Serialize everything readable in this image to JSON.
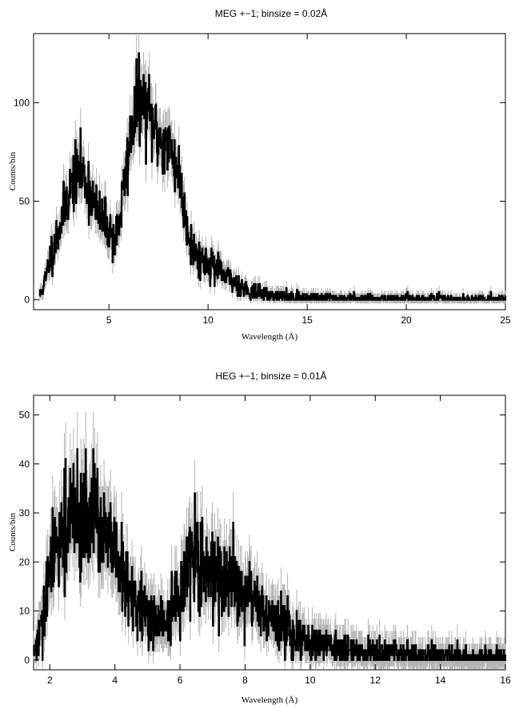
{
  "chart_data": [
    {
      "type": "line",
      "title": "MEG +−1; binsize = 0.02Å",
      "xlabel": "Wavelength (Å)",
      "ylabel": "Counts/bin",
      "xlim": [
        1.2,
        25
      ],
      "ylim": [
        -5,
        135
      ],
      "xticks": [
        5,
        10,
        15,
        20,
        25
      ],
      "yticks": [
        0,
        50,
        100
      ],
      "grid": false,
      "series": [
        {
          "x": [
            1.5,
            1.8,
            2.0,
            2.3,
            2.6,
            2.9,
            3.2,
            3.5,
            3.8,
            4.1,
            4.4,
            4.7,
            5.0,
            5.3,
            5.6,
            5.9,
            6.2,
            6.5,
            6.8,
            7.1,
            7.4,
            7.7,
            8.0,
            8.3,
            8.6,
            8.9,
            9.2,
            9.5,
            9.8,
            10.2,
            10.6,
            11.0,
            11.5,
            12.0,
            12.5,
            13.0,
            13.5,
            14.0,
            15.0,
            16.0,
            18.0,
            20.0,
            22.0,
            25.0
          ],
          "y": [
            2,
            10,
            20,
            30,
            40,
            52,
            60,
            66,
            62,
            54,
            44,
            40,
            36,
            30,
            44,
            68,
            90,
            102,
            98,
            92,
            84,
            80,
            78,
            72,
            60,
            40,
            26,
            22,
            20,
            18,
            14,
            11,
            8,
            5,
            3.5,
            2.5,
            2,
            1.5,
            1.2,
            1,
            0.8,
            0.6,
            0.5,
            0.4
          ]
        }
      ]
    },
    {
      "type": "line",
      "title": "HEG +−1; binsize = 0.01Å",
      "xlabel": "Wavelength (Å)",
      "ylabel": "Counts/bin",
      "xlim": [
        1.5,
        16
      ],
      "ylim": [
        -2,
        54
      ],
      "xticks": [
        2,
        4,
        6,
        8,
        10,
        12,
        14,
        16
      ],
      "yticks": [
        0,
        10,
        20,
        30,
        40,
        50
      ],
      "grid": false,
      "series": [
        {
          "x": [
            1.5,
            1.8,
            2.0,
            2.3,
            2.6,
            2.9,
            3.2,
            3.5,
            3.8,
            4.1,
            4.4,
            4.7,
            5.0,
            5.3,
            5.6,
            5.9,
            6.2,
            6.5,
            6.8,
            7.1,
            7.4,
            7.7,
            8.0,
            8.3,
            8.6,
            8.9,
            9.2,
            9.5,
            9.8,
            10.2,
            10.6,
            11.0,
            11.5,
            12.0,
            12.5,
            13.0,
            13.5,
            14.0,
            15.0,
            16.0
          ],
          "y": [
            1,
            8,
            18,
            26,
            28,
            30,
            29,
            28,
            24,
            19,
            14,
            11,
            9,
            8,
            7,
            12,
            18,
            20,
            19,
            18,
            16,
            14,
            13,
            12,
            10,
            8,
            7,
            5,
            4,
            3.5,
            3,
            2.5,
            2,
            1.5,
            1.2,
            1,
            1,
            0.8,
            0.6,
            0.5
          ]
        }
      ]
    }
  ]
}
